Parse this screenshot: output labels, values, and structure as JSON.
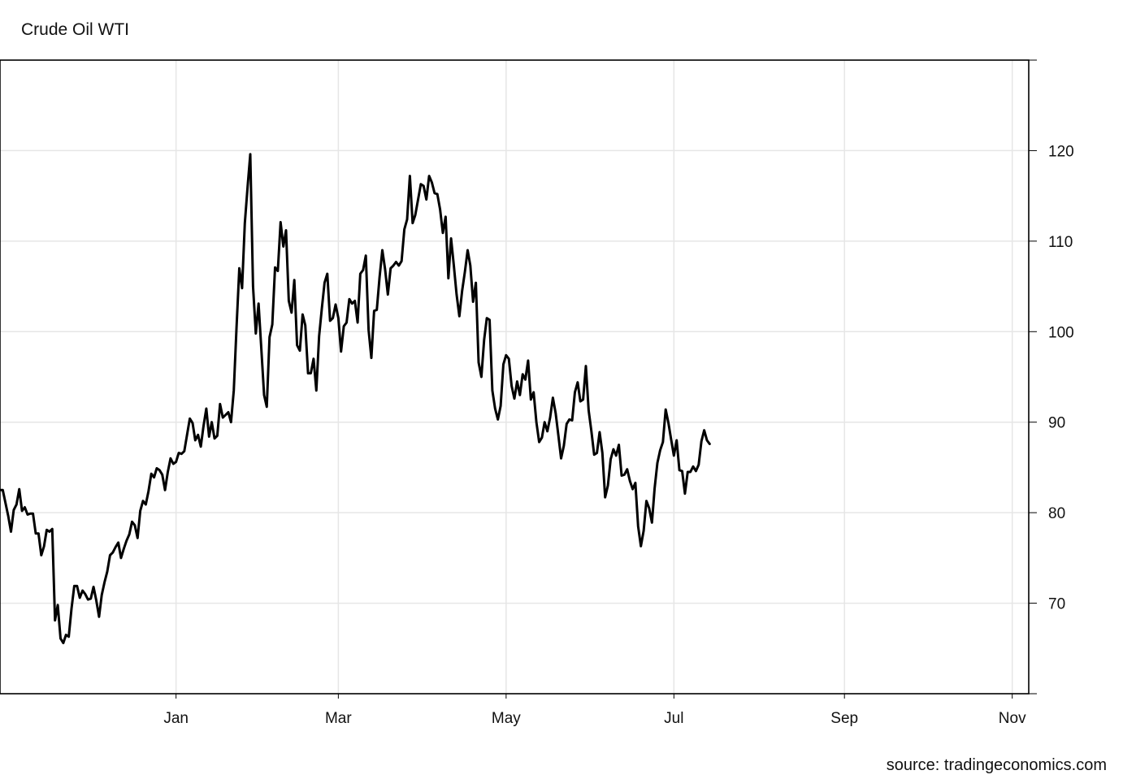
{
  "chart_data": {
    "type": "line",
    "title": "Crude Oil WTI",
    "source": "source: tradingeconomics.com",
    "xlabel": "",
    "ylabel": "",
    "ylim": [
      60,
      130
    ],
    "y_ticks": [
      70,
      80,
      90,
      100,
      110,
      120
    ],
    "x_ticks": [
      {
        "label": "Jan",
        "date": "2022-01-01"
      },
      {
        "label": "Mar",
        "date": "2022-03-01"
      },
      {
        "label": "May",
        "date": "2022-05-01"
      },
      {
        "label": "Jul",
        "date": "2022-07-01"
      },
      {
        "label": "Sep",
        "date": "2022-09-01"
      },
      {
        "label": "Nov",
        "date": "2022-11-01"
      }
    ],
    "xlim": [
      "2021-10-29",
      "2022-11-07"
    ],
    "grid": true,
    "series": [
      {
        "name": "",
        "color": "#000000",
        "points": [
          [
            "2021-10-29",
            82.5
          ],
          [
            "2021-10-30",
            82.5
          ],
          [
            "2021-11-01",
            79.6
          ],
          [
            "2021-11-02",
            77.9
          ],
          [
            "2021-11-03",
            80.3
          ],
          [
            "2021-11-04",
            80.9
          ],
          [
            "2021-11-05",
            82.6
          ],
          [
            "2021-11-06",
            80.2
          ],
          [
            "2021-11-07",
            80.6
          ],
          [
            "2021-11-08",
            79.8
          ],
          [
            "2021-11-09",
            79.9
          ],
          [
            "2021-11-10",
            79.9
          ],
          [
            "2021-11-11",
            77.7
          ],
          [
            "2021-11-12",
            77.7
          ],
          [
            "2021-11-13",
            75.3
          ],
          [
            "2021-11-14",
            76.3
          ],
          [
            "2021-11-15",
            78.1
          ],
          [
            "2021-11-16",
            77.9
          ],
          [
            "2021-11-17",
            78.2
          ],
          [
            "2021-11-18",
            68.1
          ],
          [
            "2021-11-19",
            69.8
          ],
          [
            "2021-11-20",
            66.1
          ],
          [
            "2021-11-21",
            65.6
          ],
          [
            "2021-11-22",
            66.5
          ],
          [
            "2021-11-23",
            66.3
          ],
          [
            "2021-11-24",
            69.4
          ],
          [
            "2021-11-25",
            71.9
          ],
          [
            "2021-11-26",
            71.9
          ],
          [
            "2021-11-27",
            70.6
          ],
          [
            "2021-11-28",
            71.4
          ],
          [
            "2021-11-29",
            71.0
          ],
          [
            "2021-11-30",
            70.4
          ],
          [
            "2021-12-01",
            70.5
          ],
          [
            "2021-12-02",
            71.8
          ],
          [
            "2021-12-03",
            70.3
          ],
          [
            "2021-12-04",
            68.5
          ],
          [
            "2021-12-05",
            70.9
          ],
          [
            "2021-12-06",
            72.3
          ],
          [
            "2021-12-07",
            73.5
          ],
          [
            "2021-12-08",
            75.3
          ],
          [
            "2021-12-09",
            75.6
          ],
          [
            "2021-12-10",
            76.2
          ],
          [
            "2021-12-11",
            76.7
          ],
          [
            "2021-12-12",
            75.0
          ],
          [
            "2021-12-13",
            76.0
          ],
          [
            "2021-12-14",
            76.9
          ],
          [
            "2021-12-15",
            77.6
          ],
          [
            "2021-12-16",
            79.0
          ],
          [
            "2021-12-17",
            78.6
          ],
          [
            "2021-12-18",
            77.2
          ],
          [
            "2021-12-19",
            80.2
          ],
          [
            "2021-12-20",
            81.3
          ],
          [
            "2021-12-21",
            80.9
          ],
          [
            "2021-12-22",
            82.4
          ],
          [
            "2021-12-23",
            84.3
          ],
          [
            "2021-12-24",
            83.9
          ],
          [
            "2021-12-25",
            84.9
          ],
          [
            "2021-12-26",
            84.7
          ],
          [
            "2021-12-27",
            84.2
          ],
          [
            "2021-12-28",
            82.5
          ],
          [
            "2021-12-29",
            84.5
          ],
          [
            "2021-12-30",
            86.0
          ],
          [
            "2021-12-31",
            85.4
          ],
          [
            "2022-01-01",
            85.6
          ],
          [
            "2022-01-02",
            86.6
          ],
          [
            "2022-01-03",
            86.5
          ],
          [
            "2022-01-04",
            86.8
          ],
          [
            "2022-01-05",
            88.6
          ],
          [
            "2022-01-06",
            90.4
          ],
          [
            "2022-01-07",
            89.9
          ],
          [
            "2022-01-08",
            88.0
          ],
          [
            "2022-01-09",
            88.6
          ],
          [
            "2022-01-10",
            87.3
          ],
          [
            "2022-01-11",
            89.6
          ],
          [
            "2022-01-12",
            91.5
          ],
          [
            "2022-01-13",
            88.4
          ],
          [
            "2022-01-14",
            90.0
          ],
          [
            "2022-01-15",
            88.2
          ],
          [
            "2022-01-16",
            88.5
          ],
          [
            "2022-01-17",
            92.0
          ],
          [
            "2022-01-18",
            90.5
          ],
          [
            "2022-01-19",
            90.8
          ],
          [
            "2022-01-20",
            91.1
          ],
          [
            "2022-01-21",
            90.0
          ],
          [
            "2022-01-22",
            93.5
          ],
          [
            "2022-01-23",
            100.5
          ],
          [
            "2022-01-24",
            107.0
          ],
          [
            "2022-01-25",
            104.8
          ],
          [
            "2022-01-26",
            112.0
          ],
          [
            "2022-01-27",
            116.0
          ],
          [
            "2022-01-28",
            119.6
          ],
          [
            "2022-01-29",
            105.0
          ],
          [
            "2022-01-30",
            99.8
          ],
          [
            "2022-01-31",
            103.1
          ],
          [
            "2022-02-01",
            98.1
          ],
          [
            "2022-02-02",
            93.0
          ],
          [
            "2022-02-03",
            91.7
          ],
          [
            "2022-02-04",
            99.4
          ],
          [
            "2022-02-05",
            100.8
          ],
          [
            "2022-02-06",
            107.1
          ],
          [
            "2022-02-07",
            106.7
          ],
          [
            "2022-02-08",
            112.1
          ],
          [
            "2022-02-09",
            109.4
          ],
          [
            "2022-02-10",
            111.2
          ],
          [
            "2022-02-11",
            103.4
          ],
          [
            "2022-02-12",
            102.1
          ],
          [
            "2022-02-13",
            105.7
          ],
          [
            "2022-02-14",
            98.5
          ],
          [
            "2022-02-15",
            97.9
          ],
          [
            "2022-02-16",
            101.9
          ],
          [
            "2022-02-17",
            100.7
          ],
          [
            "2022-02-18",
            95.4
          ],
          [
            "2022-02-19",
            95.4
          ],
          [
            "2022-02-20",
            97.0
          ],
          [
            "2022-02-21",
            93.5
          ],
          [
            "2022-02-22",
            99.5
          ],
          [
            "2022-02-23",
            102.5
          ],
          [
            "2022-02-24",
            105.4
          ],
          [
            "2022-02-25",
            106.4
          ],
          [
            "2022-02-26",
            101.2
          ],
          [
            "2022-02-27",
            101.5
          ],
          [
            "2022-02-28",
            103.0
          ],
          [
            "2022-03-01",
            101.5
          ],
          [
            "2022-03-02",
            97.8
          ],
          [
            "2022-03-03",
            100.6
          ],
          [
            "2022-03-04",
            101.0
          ],
          [
            "2022-03-05",
            103.6
          ],
          [
            "2022-03-06",
            103.1
          ],
          [
            "2022-03-07",
            103.4
          ],
          [
            "2022-03-08",
            101.0
          ],
          [
            "2022-03-09",
            106.4
          ],
          [
            "2022-03-10",
            106.8
          ],
          [
            "2022-03-11",
            108.4
          ],
          [
            "2022-03-12",
            100.2
          ],
          [
            "2022-03-13",
            97.1
          ],
          [
            "2022-03-14",
            102.3
          ],
          [
            "2022-03-15",
            102.4
          ],
          [
            "2022-03-16",
            106.0
          ],
          [
            "2022-03-17",
            109.0
          ],
          [
            "2022-03-18",
            106.9
          ],
          [
            "2022-03-19",
            104.1
          ],
          [
            "2022-03-20",
            107.0
          ],
          [
            "2022-03-21",
            107.3
          ],
          [
            "2022-03-22",
            107.7
          ],
          [
            "2022-03-23",
            107.3
          ],
          [
            "2022-03-24",
            107.8
          ],
          [
            "2022-03-25",
            111.3
          ],
          [
            "2022-03-26",
            112.4
          ],
          [
            "2022-03-27",
            117.2
          ],
          [
            "2022-03-28",
            112.0
          ],
          [
            "2022-03-29",
            112.9
          ],
          [
            "2022-03-30",
            114.6
          ],
          [
            "2022-03-31",
            116.3
          ],
          [
            "2022-04-01",
            116.1
          ],
          [
            "2022-04-02",
            114.6
          ],
          [
            "2022-04-03",
            117.2
          ],
          [
            "2022-04-04",
            116.5
          ],
          [
            "2022-04-05",
            115.3
          ],
          [
            "2022-04-06",
            115.2
          ],
          [
            "2022-04-07",
            113.5
          ],
          [
            "2022-04-08",
            110.9
          ],
          [
            "2022-04-09",
            112.7
          ],
          [
            "2022-04-10",
            105.9
          ],
          [
            "2022-04-11",
            110.3
          ],
          [
            "2022-04-12",
            107.3
          ],
          [
            "2022-04-13",
            104.1
          ],
          [
            "2022-04-14",
            101.7
          ],
          [
            "2022-04-15",
            104.5
          ],
          [
            "2022-04-16",
            106.6
          ],
          [
            "2022-04-17",
            109.0
          ],
          [
            "2022-04-18",
            107.3
          ],
          [
            "2022-04-19",
            103.3
          ],
          [
            "2022-04-20",
            105.4
          ],
          [
            "2022-04-21",
            96.6
          ],
          [
            "2022-04-22",
            95.0
          ],
          [
            "2022-04-23",
            99.1
          ],
          [
            "2022-04-24",
            101.5
          ],
          [
            "2022-04-25",
            101.3
          ],
          [
            "2022-04-26",
            93.5
          ],
          [
            "2022-04-27",
            91.5
          ],
          [
            "2022-04-28",
            90.3
          ],
          [
            "2022-04-29",
            91.8
          ],
          [
            "2022-04-30",
            96.4
          ],
          [
            "2022-05-01",
            97.4
          ],
          [
            "2022-05-02",
            97.0
          ],
          [
            "2022-05-03",
            94.0
          ],
          [
            "2022-05-04",
            92.6
          ],
          [
            "2022-05-05",
            94.5
          ],
          [
            "2022-05-06",
            93.0
          ],
          [
            "2022-05-07",
            95.3
          ],
          [
            "2022-05-08",
            94.7
          ],
          [
            "2022-05-09",
            96.8
          ],
          [
            "2022-05-10",
            92.5
          ],
          [
            "2022-05-11",
            93.3
          ],
          [
            "2022-05-12",
            90.0
          ],
          [
            "2022-05-13",
            87.8
          ],
          [
            "2022-05-14",
            88.3
          ],
          [
            "2022-05-15",
            90.0
          ],
          [
            "2022-05-16",
            89.0
          ],
          [
            "2022-05-17",
            90.5
          ],
          [
            "2022-05-18",
            92.7
          ],
          [
            "2022-05-19",
            91.0
          ],
          [
            "2022-05-20",
            88.5
          ],
          [
            "2022-05-21",
            86.0
          ],
          [
            "2022-05-22",
            87.4
          ],
          [
            "2022-05-23",
            89.8
          ],
          [
            "2022-05-24",
            90.3
          ],
          [
            "2022-05-25",
            90.2
          ],
          [
            "2022-05-26",
            93.3
          ],
          [
            "2022-05-27",
            94.4
          ],
          [
            "2022-05-28",
            92.3
          ],
          [
            "2022-05-29",
            92.5
          ],
          [
            "2022-05-30",
            96.2
          ],
          [
            "2022-05-31",
            91.3
          ],
          [
            "2022-06-01",
            89.0
          ],
          [
            "2022-06-02",
            86.4
          ],
          [
            "2022-06-03",
            86.6
          ],
          [
            "2022-06-04",
            88.9
          ],
          [
            "2022-06-05",
            86.6
          ],
          [
            "2022-06-06",
            81.7
          ],
          [
            "2022-06-07",
            83.0
          ],
          [
            "2022-06-08",
            85.9
          ],
          [
            "2022-06-09",
            87.0
          ],
          [
            "2022-06-10",
            86.3
          ],
          [
            "2022-06-11",
            87.5
          ],
          [
            "2022-06-12",
            84.1
          ],
          [
            "2022-06-13",
            84.2
          ],
          [
            "2022-06-14",
            84.8
          ],
          [
            "2022-06-15",
            83.5
          ],
          [
            "2022-06-16",
            82.6
          ],
          [
            "2022-06-17",
            83.3
          ],
          [
            "2022-06-18",
            78.5
          ],
          [
            "2022-06-19",
            76.3
          ],
          [
            "2022-06-20",
            78.0
          ],
          [
            "2022-06-21",
            81.3
          ],
          [
            "2022-06-22",
            80.5
          ],
          [
            "2022-06-23",
            78.9
          ],
          [
            "2022-06-24",
            82.7
          ],
          [
            "2022-06-25",
            85.5
          ],
          [
            "2022-06-26",
            86.9
          ],
          [
            "2022-06-27",
            87.8
          ],
          [
            "2022-06-28",
            91.4
          ],
          [
            "2022-06-29",
            89.9
          ],
          [
            "2022-06-30",
            88.1
          ],
          [
            "2022-07-01",
            86.3
          ],
          [
            "2022-07-02",
            88.0
          ],
          [
            "2022-07-03",
            84.7
          ],
          [
            "2022-07-04",
            84.6
          ],
          [
            "2022-07-05",
            82.1
          ],
          [
            "2022-07-06",
            84.5
          ],
          [
            "2022-07-07",
            84.5
          ],
          [
            "2022-07-08",
            85.1
          ],
          [
            "2022-07-09",
            84.6
          ],
          [
            "2022-07-10",
            85.3
          ],
          [
            "2022-07-11",
            87.9
          ],
          [
            "2022-07-12",
            89.1
          ],
          [
            "2022-07-13",
            88.0
          ],
          [
            "2022-07-14",
            87.6
          ]
        ]
      }
    ]
  }
}
